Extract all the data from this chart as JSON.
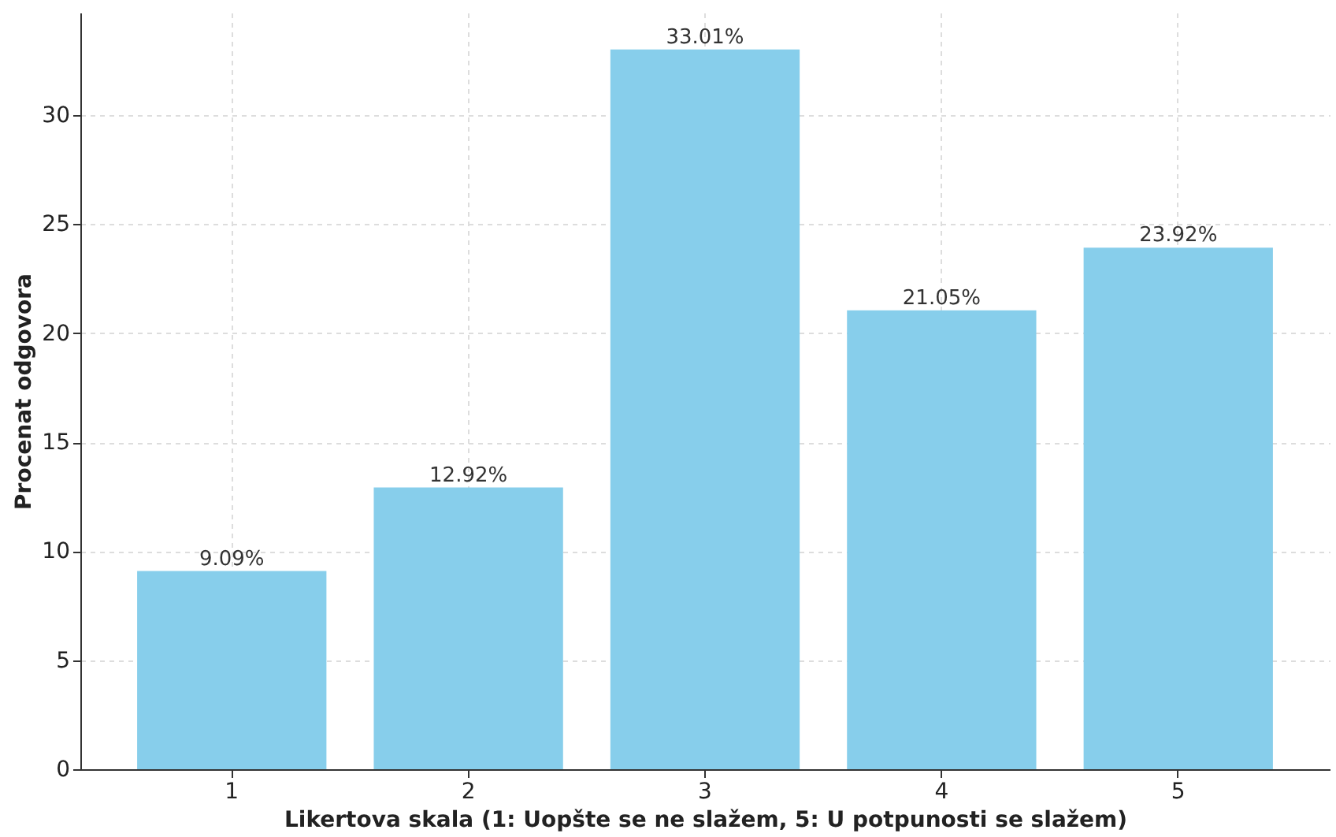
{
  "chart_data": {
    "type": "bar",
    "xlabel": "Likertova skala (1: Uopšte se ne slažem, 5: U potpunosti se slažem)",
    "ylabel": "Procenat odgovora",
    "categories": [
      "1",
      "2",
      "3",
      "4",
      "5"
    ],
    "values": [
      9.09,
      12.92,
      33.01,
      21.05,
      23.92
    ],
    "value_labels": [
      "9.09%",
      "12.92%",
      "33.01%",
      "21.05%",
      "23.92%"
    ],
    "color": "#87ceeb",
    "ylim": [
      0,
      34.7
    ],
    "yticks": [
      0,
      5,
      10,
      15,
      20,
      25,
      30
    ],
    "grid": true
  }
}
